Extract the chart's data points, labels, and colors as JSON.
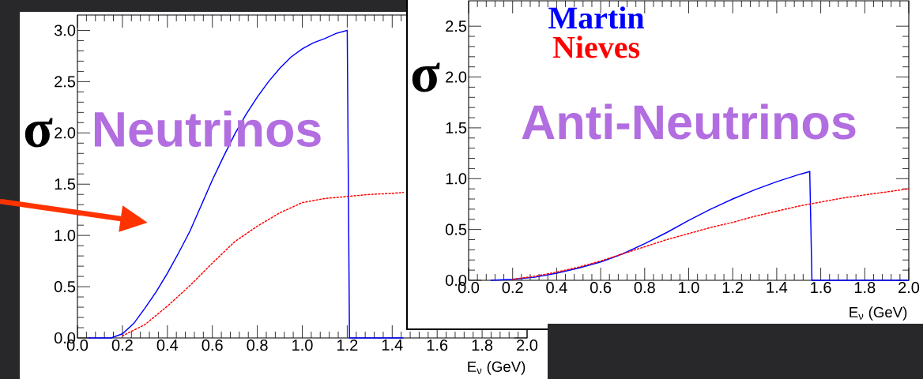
{
  "chart_data": [
    {
      "type": "line",
      "title": "Neutrinos",
      "ylabel": "σ",
      "xlabel": "E$_{ν}$ (GeV)",
      "xlim": [
        0,
        2
      ],
      "ylim": [
        0,
        3.15
      ],
      "xticks": [
        {
          "value": 0,
          "label": "0.0"
        },
        {
          "value": 0.2,
          "label": "0.2"
        },
        {
          "value": 0.4,
          "label": "0.4"
        },
        {
          "value": 0.6,
          "label": "0.6"
        },
        {
          "value": 0.8,
          "label": "0.8"
        },
        {
          "value": 1.0,
          "label": "1.0"
        },
        {
          "value": 1.2,
          "label": "1.2"
        },
        {
          "value": 1.4,
          "label": "1.4"
        },
        {
          "value": 1.6,
          "label": "1.6"
        },
        {
          "value": 1.8,
          "label": "1.8"
        },
        {
          "value": 2.0,
          "label": "2.0"
        }
      ],
      "yticks": [
        {
          "value": 0,
          "label": "0.0"
        },
        {
          "value": 0.5,
          "label": "0.5"
        },
        {
          "value": 1.0,
          "label": "1.0"
        },
        {
          "value": 1.5,
          "label": "1.5"
        },
        {
          "value": 2.0,
          "label": "2.0"
        },
        {
          "value": 2.5,
          "label": "2.5"
        },
        {
          "value": 3.0,
          "label": "3.0"
        }
      ],
      "series": [
        {
          "color": "#0000ff",
          "line_style": "solid",
          "x": [
            0.05,
            0.1,
            0.15,
            0.2,
            0.25,
            0.3,
            0.35,
            0.4,
            0.45,
            0.5,
            0.55,
            0.6,
            0.65,
            0.7,
            0.75,
            0.8,
            0.85,
            0.9,
            0.95,
            1.0,
            1.05,
            1.1,
            1.15,
            1.2,
            1.21,
            1.45
          ],
          "values": [
            0,
            0,
            0,
            0.04,
            0.14,
            0.29,
            0.45,
            0.63,
            0.83,
            1.04,
            1.29,
            1.54,
            1.77,
            1.99,
            2.18,
            2.35,
            2.5,
            2.63,
            2.74,
            2.82,
            2.88,
            2.92,
            2.97,
            3.0,
            0,
            0
          ]
        },
        {
          "color": "#ff0000",
          "line_style": "dotted",
          "x": [
            0.2,
            0.3,
            0.4,
            0.5,
            0.6,
            0.7,
            0.8,
            0.9,
            1.0,
            1.1,
            1.2,
            1.3,
            1.4,
            1.45
          ],
          "values": [
            0.02,
            0.13,
            0.31,
            0.51,
            0.73,
            0.94,
            1.09,
            1.22,
            1.32,
            1.36,
            1.38,
            1.4,
            1.41,
            1.42
          ]
        }
      ]
    },
    {
      "type": "line",
      "title": "Anti-Neutrinos",
      "ylabel": "σ",
      "xlabel": "E$_{ν}$ (GeV)",
      "xlim": [
        0,
        2
      ],
      "ylim": [
        0,
        2.75
      ],
      "legend": "top left",
      "xticks": [
        {
          "value": 0,
          "label": "0.0"
        },
        {
          "value": 0.2,
          "label": "0.2"
        },
        {
          "value": 0.4,
          "label": "0.4"
        },
        {
          "value": 0.6,
          "label": "0.6"
        },
        {
          "value": 0.8,
          "label": "0.8"
        },
        {
          "value": 1.0,
          "label": "1.0"
        },
        {
          "value": 1.2,
          "label": "1.2"
        },
        {
          "value": 1.4,
          "label": "1.4"
        },
        {
          "value": 1.6,
          "label": "1.6"
        },
        {
          "value": 1.8,
          "label": "1.8"
        },
        {
          "value": 2.0,
          "label": "2.0"
        }
      ],
      "yticks": [
        {
          "value": 0,
          "label": "0.0"
        },
        {
          "value": 0.5,
          "label": "0.5"
        },
        {
          "value": 1.0,
          "label": "1.0"
        },
        {
          "value": 1.5,
          "label": "1.5"
        },
        {
          "value": 2.0,
          "label": "2.0"
        },
        {
          "value": 2.5,
          "label": "2.5"
        }
      ],
      "series": [
        {
          "name": "Martin",
          "color": "#0000ff",
          "line_style": "solid",
          "x": [
            0.1,
            0.2,
            0.3,
            0.4,
            0.5,
            0.6,
            0.7,
            0.8,
            0.9,
            1.0,
            1.1,
            1.2,
            1.3,
            1.4,
            1.5,
            1.55,
            1.56,
            2.0
          ],
          "values": [
            0,
            0.01,
            0.03,
            0.07,
            0.12,
            0.18,
            0.26,
            0.36,
            0.47,
            0.59,
            0.7,
            0.8,
            0.89,
            0.97,
            1.04,
            1.07,
            0,
            0
          ]
        },
        {
          "name": "Nieves",
          "color": "#ff0000",
          "line_style": "dotted",
          "x": [
            0.2,
            0.3,
            0.4,
            0.5,
            0.6,
            0.7,
            0.8,
            0.9,
            1.0,
            1.1,
            1.2,
            1.3,
            1.4,
            1.5,
            1.6,
            1.7,
            1.8,
            1.9,
            2.0
          ],
          "values": [
            0.01,
            0.04,
            0.08,
            0.13,
            0.19,
            0.26,
            0.33,
            0.4,
            0.46,
            0.52,
            0.57,
            0.63,
            0.68,
            0.73,
            0.77,
            0.81,
            0.84,
            0.87,
            0.9
          ]
        }
      ]
    }
  ]
}
